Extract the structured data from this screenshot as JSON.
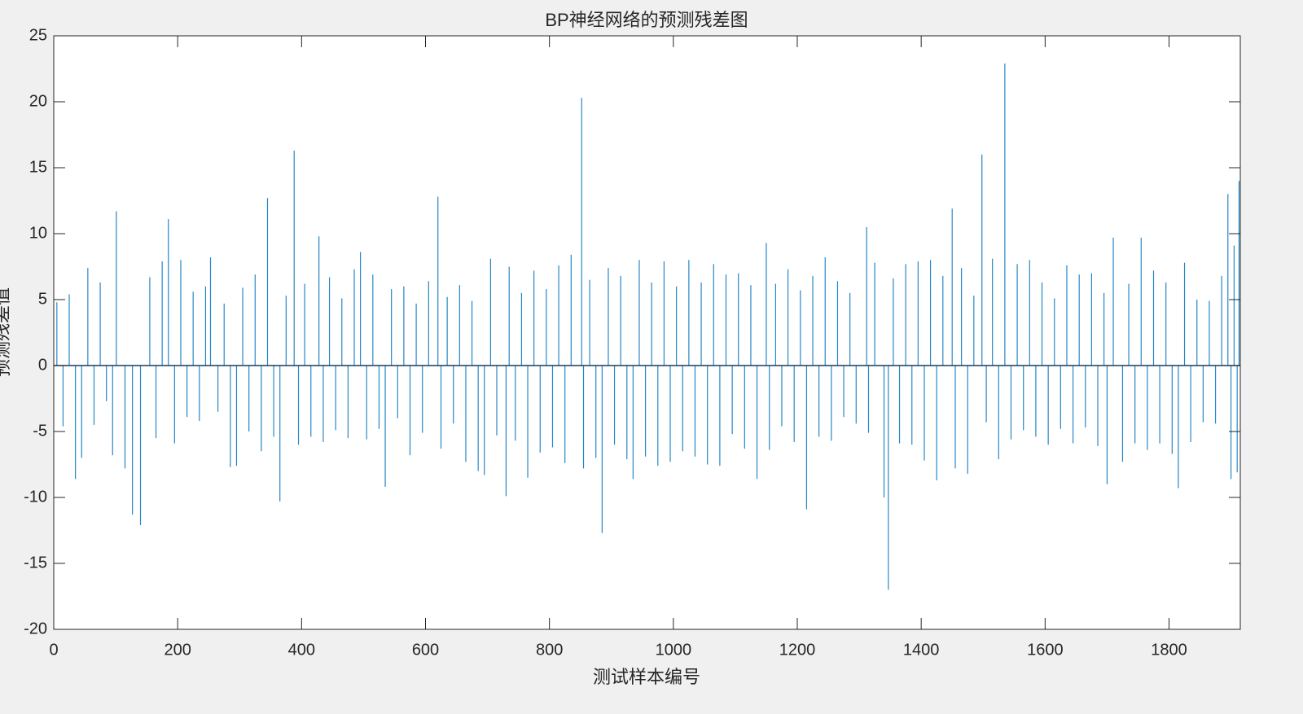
{
  "chart_data": {
    "type": "bar",
    "title": "BP神经网络的预测残差图",
    "x_label": "测试样本编号",
    "y_label": "预测残差值",
    "color": "#0072bd",
    "xlim": [
      0,
      1915
    ],
    "ylim": [
      -20,
      25
    ],
    "xticks": [
      0,
      200,
      400,
      600,
      800,
      1000,
      1200,
      1400,
      1600,
      1800
    ],
    "yticks": [
      -20,
      -15,
      -10,
      -5,
      0,
      5,
      10,
      15,
      20,
      25
    ],
    "x": [
      5,
      15,
      25,
      35,
      45,
      55,
      65,
      75,
      85,
      95,
      101,
      115,
      127,
      140,
      155,
      165,
      175,
      185,
      195,
      205,
      215,
      225,
      235,
      245,
      253,
      265,
      275,
      285,
      295,
      305,
      315,
      325,
      335,
      345,
      355,
      365,
      375,
      388,
      395,
      405,
      415,
      428,
      435,
      445,
      455,
      465,
      475,
      485,
      495,
      505,
      515,
      525,
      535,
      545,
      555,
      565,
      575,
      585,
      595,
      605,
      620,
      625,
      635,
      645,
      655,
      665,
      675,
      685,
      695,
      705,
      715,
      730,
      735,
      745,
      755,
      765,
      775,
      785,
      795,
      805,
      815,
      825,
      835,
      852,
      855,
      865,
      875,
      885,
      895,
      905,
      915,
      925,
      935,
      945,
      955,
      965,
      975,
      985,
      995,
      1005,
      1015,
      1025,
      1035,
      1045,
      1055,
      1065,
      1075,
      1085,
      1095,
      1105,
      1115,
      1125,
      1135,
      1150,
      1155,
      1165,
      1175,
      1185,
      1195,
      1205,
      1215,
      1225,
      1235,
      1245,
      1255,
      1265,
      1275,
      1285,
      1295,
      1312,
      1315,
      1325,
      1340,
      1347,
      1355,
      1365,
      1375,
      1385,
      1395,
      1405,
      1415,
      1425,
      1435,
      1450,
      1455,
      1465,
      1475,
      1485,
      1498,
      1505,
      1515,
      1525,
      1535,
      1545,
      1555,
      1565,
      1575,
      1585,
      1595,
      1605,
      1615,
      1625,
      1635,
      1645,
      1655,
      1665,
      1675,
      1685,
      1695,
      1700,
      1710,
      1725,
      1735,
      1745,
      1755,
      1765,
      1775,
      1785,
      1795,
      1805,
      1815,
      1825,
      1835,
      1845,
      1855,
      1865,
      1875,
      1885,
      1895,
      1900,
      1905,
      1910,
      1913
    ],
    "values": [
      4.8,
      -4.6,
      5.4,
      -8.6,
      -7.0,
      7.4,
      -4.5,
      6.3,
      -2.7,
      -6.8,
      11.7,
      -7.8,
      -11.3,
      -12.1,
      6.7,
      -5.5,
      7.9,
      11.1,
      -5.9,
      8.0,
      -3.9,
      5.6,
      -4.2,
      6.0,
      8.2,
      -3.5,
      4.7,
      -7.7,
      -7.6,
      5.9,
      -5.0,
      6.9,
      -6.5,
      12.7,
      -5.4,
      -10.3,
      5.3,
      16.3,
      -6.0,
      6.2,
      -5.4,
      9.8,
      -5.8,
      6.7,
      -4.9,
      5.1,
      -5.5,
      7.3,
      8.6,
      -5.6,
      6.9,
      -4.8,
      -9.2,
      5.8,
      -4.0,
      6.0,
      -6.8,
      4.7,
      -5.1,
      6.4,
      12.8,
      -6.3,
      5.2,
      -4.4,
      6.1,
      -7.3,
      4.9,
      -8.0,
      -8.3,
      8.1,
      -5.3,
      -9.9,
      7.5,
      -5.7,
      5.5,
      -8.5,
      7.2,
      -6.6,
      5.8,
      -6.2,
      7.6,
      -7.4,
      8.4,
      20.3,
      -7.8,
      6.5,
      -7.0,
      -12.7,
      7.4,
      -6.0,
      6.8,
      -7.1,
      -8.6,
      8.0,
      -6.9,
      6.3,
      -7.6,
      7.9,
      -7.3,
      6.0,
      -6.5,
      8.0,
      -6.9,
      6.3,
      -7.5,
      7.7,
      -7.6,
      6.9,
      -5.2,
      7.0,
      -6.3,
      6.1,
      -8.6,
      9.3,
      -6.4,
      6.2,
      -4.6,
      7.3,
      -5.8,
      5.7,
      -10.9,
      6.8,
      -5.4,
      8.2,
      -5.7,
      6.4,
      -3.9,
      5.5,
      -4.4,
      10.5,
      -5.1,
      7.8,
      -10.0,
      -17.0,
      6.6,
      -5.9,
      7.7,
      -6.0,
      7.9,
      -7.2,
      8.0,
      -8.7,
      6.8,
      11.9,
      -7.8,
      7.4,
      -8.2,
      5.3,
      16.0,
      -4.3,
      8.1,
      -7.1,
      22.9,
      -5.6,
      7.7,
      -4.9,
      8.0,
      -5.4,
      6.3,
      -6.0,
      5.1,
      -4.8,
      7.6,
      -5.9,
      6.9,
      -4.7,
      7.0,
      -6.1,
      5.5,
      -9.0,
      9.7,
      -7.3,
      6.2,
      -5.9,
      9.7,
      -6.4,
      7.2,
      -5.9,
      6.3,
      -6.7,
      -9.3,
      7.8,
      -5.8,
      5.0,
      -4.3,
      4.9,
      -4.4,
      6.8,
      13.0,
      -8.6,
      9.1,
      -8.1,
      14.0
    ]
  }
}
